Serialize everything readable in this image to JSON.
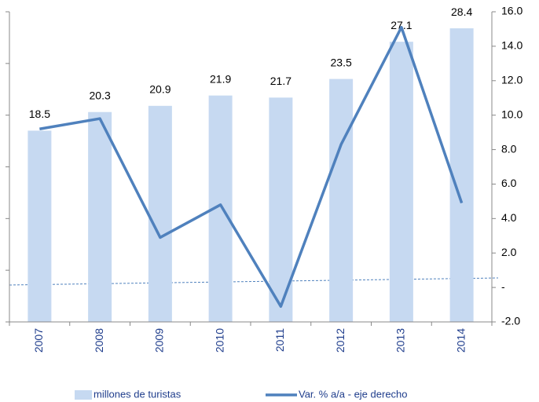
{
  "chart_data": {
    "type": "bar-line",
    "categories": [
      "2007",
      "2008",
      "2009",
      "2010",
      "2011",
      "2012",
      "2013",
      "2014"
    ],
    "series": [
      {
        "name": "millones de turistas",
        "type": "bar",
        "color": "#c6d9f1",
        "values": [
          18.5,
          20.3,
          20.9,
          21.9,
          21.7,
          23.5,
          27.1,
          28.4
        ]
      },
      {
        "name": "Var. % a/a - eje derecho",
        "type": "line",
        "axis": "y2",
        "color": "#4f81bd",
        "values": [
          9.2,
          9.8,
          2.9,
          4.8,
          -1.1,
          8.3,
          15.1,
          4.9
        ]
      }
    ],
    "ylim": [
      0,
      30
    ],
    "yticks": [
      0,
      5,
      10,
      15,
      20,
      25,
      30
    ],
    "y2lim": [
      -2,
      16
    ],
    "y2ticks": [
      {
        "value": -2,
        "label": "-2.0"
      },
      {
        "value": 0,
        "label": "-"
      },
      {
        "value": 2,
        "label": "2.0"
      },
      {
        "value": 4,
        "label": "4.0"
      },
      {
        "value": 6,
        "label": "6.0"
      },
      {
        "value": 8,
        "label": "8.0"
      },
      {
        "value": 10,
        "label": "10.0"
      },
      {
        "value": 12,
        "label": "12.0"
      },
      {
        "value": 14,
        "label": "14.0"
      },
      {
        "value": 16,
        "label": "16.0"
      }
    ],
    "legend": "bottom"
  }
}
